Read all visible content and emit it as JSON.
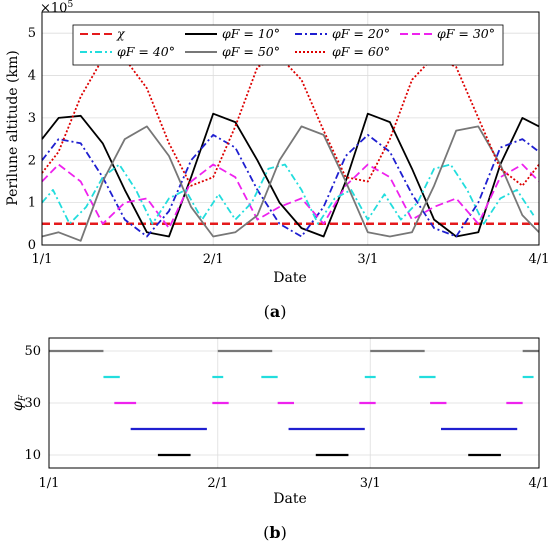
{
  "colors": {
    "chi": "#e41a1c",
    "phi10": "#000000",
    "phi20": "#1f1fd0",
    "phi30": "#ee22ee",
    "phi40": "#22dddd",
    "phi50": "#777777",
    "phi60": "#dd0000",
    "axis": "#000000",
    "grid": "#dddddd"
  },
  "date_ticks": [
    "1/1",
    "2/1",
    "3/1",
    "4/1"
  ],
  "chart_data": [
    {
      "type": "line",
      "caption": "(a)",
      "xlabel": "Date",
      "ylabel": "Perilune altitude (km)",
      "yexponent": "×10^5",
      "xlim": [
        "1/1",
        "4/1"
      ],
      "ylim": [
        0,
        5.5
      ],
      "yticks": [
        0,
        1,
        2,
        3,
        4,
        5
      ],
      "grid": true,
      "legend_position": "top",
      "series": [
        {
          "name": "χ",
          "style": "dash",
          "color_key": "chi",
          "x": [
            "1/1",
            "4/1"
          ],
          "y": [
            0.5,
            0.5
          ]
        },
        {
          "name": "φF = 10°",
          "style": "solid",
          "color_key": "phi10",
          "x": [
            "1/1",
            "1/4",
            "1/8",
            "1/12",
            "1/16",
            "1/20",
            "1/24",
            "1/28",
            "2/1",
            "2/5",
            "2/9",
            "2/13",
            "2/17",
            "2/21",
            "2/25",
            "3/1",
            "3/5",
            "3/9",
            "3/13",
            "3/17",
            "3/21",
            "3/25",
            "3/29",
            "4/1"
          ],
          "y": [
            2.5,
            3.0,
            3.05,
            2.4,
            1.3,
            0.3,
            0.2,
            1.6,
            3.1,
            2.9,
            2.0,
            1.0,
            0.4,
            0.2,
            1.5,
            3.1,
            2.9,
            1.8,
            0.6,
            0.2,
            0.3,
            1.9,
            3.0,
            2.8
          ]
        },
        {
          "name": "φF = 20°",
          "style": "dashdot",
          "color_key": "phi20",
          "x": [
            "1/1",
            "1/4",
            "1/8",
            "1/12",
            "1/16",
            "1/20",
            "1/24",
            "1/28",
            "2/1",
            "2/5",
            "2/9",
            "2/13",
            "2/17",
            "2/21",
            "2/25",
            "3/1",
            "3/5",
            "3/9",
            "3/13",
            "3/17",
            "3/21",
            "3/25",
            "3/29",
            "4/1"
          ],
          "y": [
            2.0,
            2.5,
            2.4,
            1.6,
            0.6,
            0.2,
            0.8,
            2.0,
            2.6,
            2.3,
            1.3,
            0.5,
            0.2,
            0.9,
            2.1,
            2.6,
            2.2,
            1.2,
            0.4,
            0.2,
            1.0,
            2.3,
            2.5,
            2.2
          ]
        },
        {
          "name": "φF = 30°",
          "style": "dash",
          "color_key": "phi30",
          "x": [
            "1/1",
            "1/4",
            "1/8",
            "1/12",
            "1/16",
            "1/20",
            "1/24",
            "1/28",
            "2/1",
            "2/5",
            "2/9",
            "2/13",
            "2/17",
            "2/21",
            "2/25",
            "3/1",
            "3/5",
            "3/9",
            "3/13",
            "3/17",
            "3/21",
            "3/25",
            "3/29",
            "4/1"
          ],
          "y": [
            1.5,
            1.9,
            1.5,
            0.5,
            1.0,
            1.1,
            0.4,
            1.5,
            1.9,
            1.6,
            0.6,
            0.9,
            1.1,
            0.5,
            1.4,
            1.9,
            1.6,
            0.6,
            0.9,
            1.1,
            0.5,
            1.6,
            1.9,
            1.5
          ]
        },
        {
          "name": "φF = 40°",
          "style": "dashdot",
          "color_key": "phi40",
          "x": [
            "1/1",
            "1/3",
            "1/6",
            "1/9",
            "1/12",
            "1/15",
            "1/18",
            "1/21",
            "1/24",
            "1/27",
            "1/30",
            "2/2",
            "2/5",
            "2/8",
            "2/11",
            "2/14",
            "2/17",
            "2/20",
            "2/23",
            "2/26",
            "3/1",
            "3/4",
            "3/7",
            "3/10",
            "3/13",
            "3/16",
            "3/19",
            "3/22",
            "3/25",
            "3/28",
            "3/31"
          ],
          "y": [
            1.0,
            1.3,
            0.5,
            0.9,
            1.6,
            1.9,
            1.3,
            0.5,
            1.1,
            1.3,
            0.6,
            1.2,
            0.6,
            1.0,
            1.8,
            1.9,
            1.3,
            0.5,
            1.1,
            1.3,
            0.6,
            1.2,
            0.6,
            1.0,
            1.8,
            1.9,
            1.3,
            0.5,
            1.1,
            1.3,
            0.7
          ]
        },
        {
          "name": "φF = 50°",
          "style": "solid",
          "color_key": "phi50",
          "x": [
            "1/1",
            "1/4",
            "1/8",
            "1/12",
            "1/16",
            "1/20",
            "1/24",
            "1/28",
            "2/1",
            "2/5",
            "2/9",
            "2/13",
            "2/17",
            "2/21",
            "2/25",
            "3/1",
            "3/5",
            "3/9",
            "3/13",
            "3/17",
            "3/21",
            "3/25",
            "3/29",
            "4/1"
          ],
          "y": [
            0.2,
            0.3,
            0.1,
            1.5,
            2.5,
            2.8,
            2.1,
            0.9,
            0.2,
            0.3,
            0.7,
            2.0,
            2.8,
            2.6,
            1.5,
            0.3,
            0.2,
            0.3,
            1.4,
            2.7,
            2.8,
            1.9,
            0.7,
            0.3
          ]
        },
        {
          "name": "φF = 60°",
          "style": "dot",
          "color_key": "phi60",
          "x": [
            "1/1",
            "1/4",
            "1/8",
            "1/12",
            "1/16",
            "1/20",
            "1/24",
            "1/28",
            "2/1",
            "2/5",
            "2/9",
            "2/13",
            "2/17",
            "2/21",
            "2/25",
            "3/1",
            "3/5",
            "3/9",
            "3/13",
            "3/17",
            "3/21",
            "3/25",
            "3/29",
            "4/1"
          ],
          "y": [
            1.7,
            2.2,
            3.5,
            4.4,
            4.4,
            3.7,
            2.4,
            1.4,
            1.6,
            2.8,
            4.2,
            4.45,
            3.9,
            2.7,
            1.6,
            1.5,
            2.5,
            3.9,
            4.45,
            4.2,
            3.0,
            1.8,
            1.4,
            1.9
          ]
        }
      ]
    },
    {
      "type": "bar",
      "caption": "(b)",
      "xlabel": "Date",
      "ylabel": "φF",
      "xlim": [
        "1/1",
        "4/1"
      ],
      "ylim": [
        5,
        55
      ],
      "yticks": [
        10,
        30,
        50
      ],
      "grid": true,
      "intervals": [
        {
          "level": 50,
          "color_key": "phi50",
          "start": "1/1",
          "end": "1/11"
        },
        {
          "level": 50,
          "color_key": "phi50",
          "start": "2/1",
          "end": "2/11"
        },
        {
          "level": 50,
          "color_key": "phi50",
          "start": "3/1",
          "end": "3/11"
        },
        {
          "level": 50,
          "color_key": "phi50",
          "start": "3/29",
          "end": "4/1"
        },
        {
          "level": 40,
          "color_key": "phi40",
          "start": "1/11",
          "end": "1/14"
        },
        {
          "level": 40,
          "color_key": "phi40",
          "start": "1/31",
          "end": "2/2"
        },
        {
          "level": 40,
          "color_key": "phi40",
          "start": "2/9",
          "end": "2/12"
        },
        {
          "level": 40,
          "color_key": "phi40",
          "start": "2/28",
          "end": "3/2"
        },
        {
          "level": 40,
          "color_key": "phi40",
          "start": "3/10",
          "end": "3/13"
        },
        {
          "level": 40,
          "color_key": "phi40",
          "start": "3/29",
          "end": "3/31"
        },
        {
          "level": 30,
          "color_key": "phi30",
          "start": "1/13",
          "end": "1/17"
        },
        {
          "level": 30,
          "color_key": "phi30",
          "start": "1/31",
          "end": "2/3"
        },
        {
          "level": 30,
          "color_key": "phi30",
          "start": "2/12",
          "end": "2/15"
        },
        {
          "level": 30,
          "color_key": "phi30",
          "start": "2/27",
          "end": "3/2"
        },
        {
          "level": 30,
          "color_key": "phi30",
          "start": "3/12",
          "end": "3/15"
        },
        {
          "level": 30,
          "color_key": "phi30",
          "start": "3/26",
          "end": "3/29"
        },
        {
          "level": 20,
          "color_key": "phi20",
          "start": "1/16",
          "end": "1/30"
        },
        {
          "level": 20,
          "color_key": "phi20",
          "start": "2/14",
          "end": "2/28"
        },
        {
          "level": 20,
          "color_key": "phi20",
          "start": "3/14",
          "end": "3/28"
        },
        {
          "level": 10,
          "color_key": "phi10",
          "start": "1/21",
          "end": "1/27"
        },
        {
          "level": 10,
          "color_key": "phi10",
          "start": "2/19",
          "end": "2/25"
        },
        {
          "level": 10,
          "color_key": "phi10",
          "start": "3/19",
          "end": "3/25"
        }
      ]
    }
  ]
}
